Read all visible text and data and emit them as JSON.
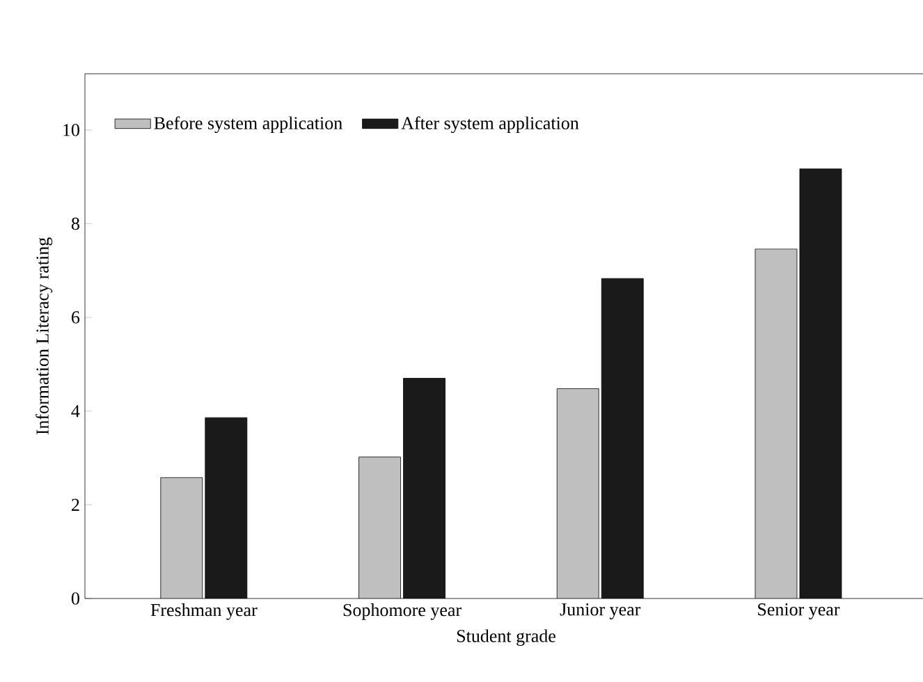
{
  "chart_data": {
    "type": "bar",
    "xlabel": "Student grade",
    "ylabel": "Information Literacy rating",
    "categories": [
      "Freshman year",
      "Sophomore year",
      "Junior year",
      "Senior year"
    ],
    "series": [
      {
        "name": "Before system application",
        "color": "#bfbfbf",
        "values": [
          2.58,
          3.02,
          4.48,
          7.46
        ]
      },
      {
        "name": "After system application",
        "color": "#1a1a1a",
        "values": [
          3.86,
          4.7,
          6.83,
          9.17
        ]
      }
    ],
    "ylim": [
      0,
      11.2
    ],
    "yticks": [
      0,
      2,
      4,
      6,
      8,
      10
    ],
    "grid": false,
    "legend": "top left"
  }
}
